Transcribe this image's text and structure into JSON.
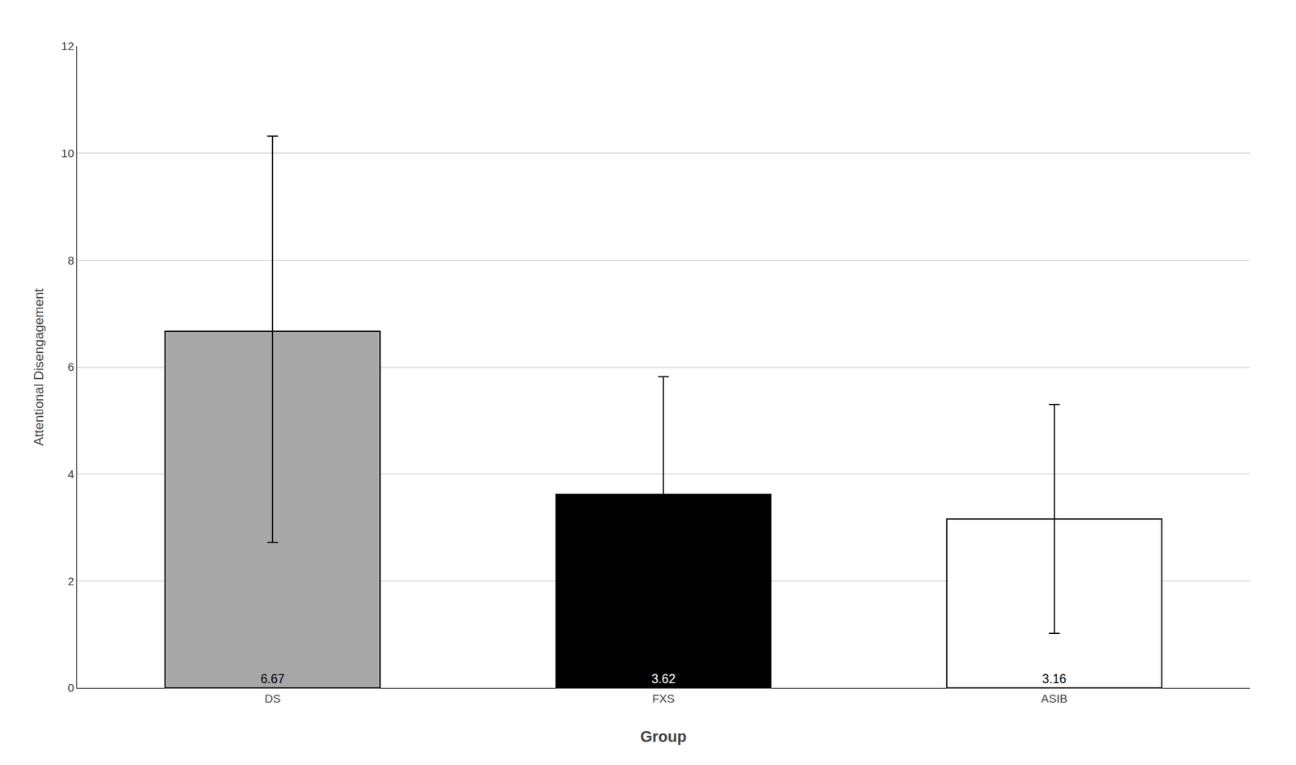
{
  "chart_data": {
    "type": "bar",
    "categories": [
      "DS",
      "FXS",
      "ASIB"
    ],
    "values": [
      6.67,
      3.62,
      3.16
    ],
    "error_upper": [
      3.65,
      2.2,
      2.14
    ],
    "error_lower": [
      3.95,
      2.42,
      2.14
    ],
    "colors": [
      "#a8a8a8",
      "#000000",
      "#ffffff"
    ],
    "xlabel": "Group",
    "ylabel": "Attentional Disengagement",
    "ylim": [
      0,
      12
    ],
    "yticks": [
      0,
      2,
      4,
      6,
      8,
      10,
      12
    ],
    "grid": true,
    "data_labels": true
  }
}
